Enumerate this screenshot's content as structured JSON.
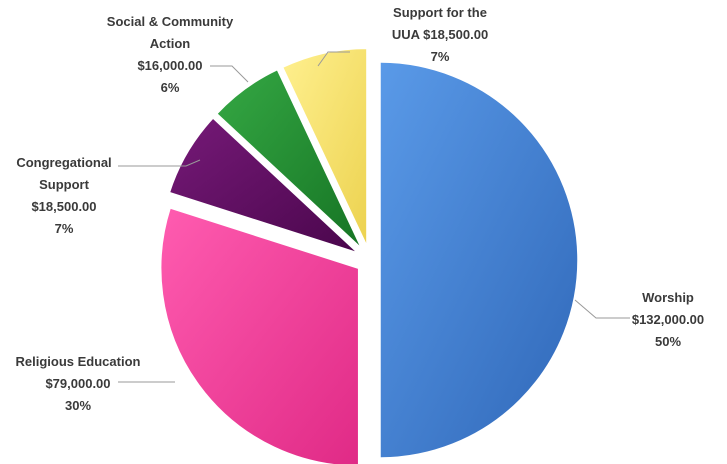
{
  "chart_data": {
    "type": "pie",
    "exploded": true,
    "slices": [
      {
        "label": "Worship",
        "amount": "$132,000.00",
        "percent": "50%",
        "value": 132000,
        "color": "#3e7fd6"
      },
      {
        "label": "Religious Education",
        "amount": "$79,000.00",
        "percent": "30%",
        "value": 79000,
        "color": "#f23c9a"
      },
      {
        "label": "Congregational Support",
        "amount": "$18,500.00",
        "percent": "7%",
        "value": 18500,
        "color": "#5b0a5e"
      },
      {
        "label": "Social & Community Action",
        "amount": "$16,000.00",
        "percent": "6%",
        "value": 16000,
        "color": "#1f8f2e"
      },
      {
        "label": "Support for the UUA",
        "amount": "$18,500.00",
        "percent": "7%",
        "value": 18500,
        "color": "#f7e36b"
      }
    ]
  }
}
